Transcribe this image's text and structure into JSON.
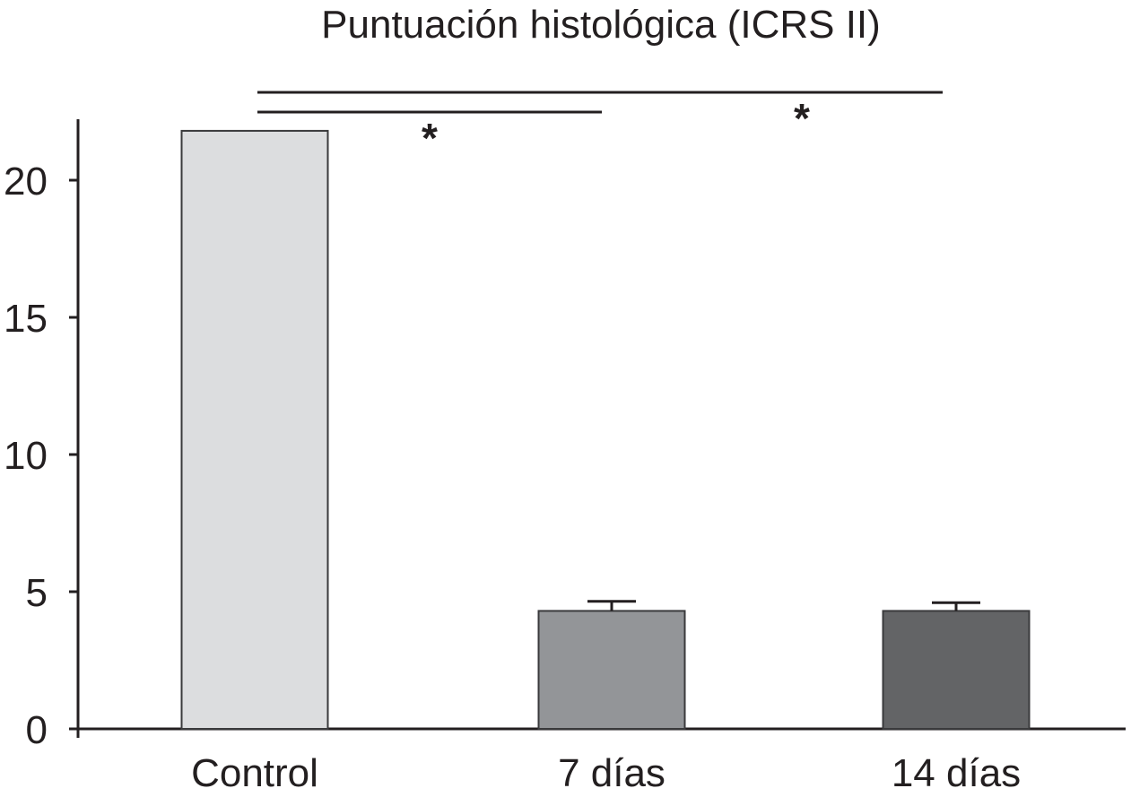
{
  "chart_data": {
    "type": "bar",
    "title": "Puntuación histológica (ICRS II)",
    "xlabel": "",
    "ylabel": "",
    "categories": [
      "Control",
      "7 días",
      "14 días"
    ],
    "values": [
      21.8,
      4.3,
      4.3
    ],
    "error_bars": [
      null,
      0.35,
      0.3
    ],
    "ylim": [
      0,
      22
    ],
    "yticks": [
      0,
      5,
      10,
      15,
      20
    ],
    "ytick_labels": [
      "0",
      "5",
      "10",
      "15",
      "20"
    ],
    "bar_colors": [
      "#dcdddf",
      "#939598",
      "#636466"
    ],
    "grid": false,
    "legend": "none",
    "significance": [
      {
        "from": "Control",
        "to": "7 días",
        "label": "*"
      },
      {
        "from": "Control",
        "to": "14 días",
        "label": "*"
      }
    ]
  }
}
